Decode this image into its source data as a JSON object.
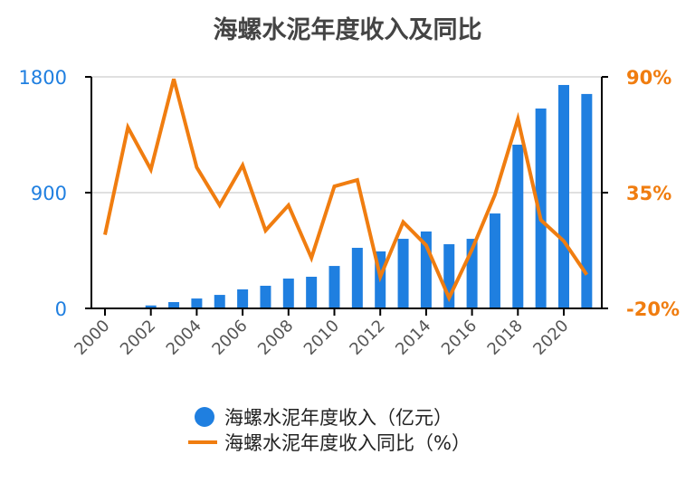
{
  "chart_data": {
    "type": "bar+line",
    "title": "海螺水泥年度收入及同比",
    "categories": [
      "2000",
      "2001",
      "2002",
      "2003",
      "2004",
      "2005",
      "2006",
      "2007",
      "2008",
      "2009",
      "2010",
      "2011",
      "2012",
      "2013",
      "2014",
      "2015",
      "2016",
      "2017",
      "2018",
      "2019",
      "2020",
      "2021"
    ],
    "x_tick_labels": [
      "2000",
      "2002",
      "2004",
      "2006",
      "2008",
      "2010",
      "2012",
      "2014",
      "2016",
      "2018",
      "2020"
    ],
    "series": [
      {
        "name": "海螺水泥年度收入（亿元）",
        "type": "bar",
        "axis": "left",
        "values": [
          0,
          0,
          23,
          49,
          77,
          105,
          148,
          176,
          232,
          246,
          330,
          471,
          443,
          541,
          598,
          499,
          541,
          738,
          1273,
          1554,
          1737,
          1667
        ]
      },
      {
        "name": "海螺水泥年度收入同比（%）",
        "type": "line",
        "axis": "right",
        "values": [
          15,
          66,
          46,
          89,
          47,
          29,
          48,
          17,
          29,
          4,
          38,
          41,
          -5,
          21,
          10,
          -15,
          8,
          34,
          70,
          22,
          12,
          -4
        ]
      }
    ],
    "left_axis": {
      "ylim": [
        0,
        1800
      ],
      "ticks": [
        "0",
        "900",
        "1800"
      ]
    },
    "right_axis": {
      "ylim": [
        -20,
        90
      ],
      "ticks": [
        "-20%",
        "35%",
        "90%"
      ]
    },
    "grid": true,
    "legend_position": "bottom",
    "colors": {
      "bar": "#1f7fe0",
      "line": "#f07d10",
      "left_axis": "#1f7fe0",
      "right_axis": "#f07d10"
    }
  }
}
